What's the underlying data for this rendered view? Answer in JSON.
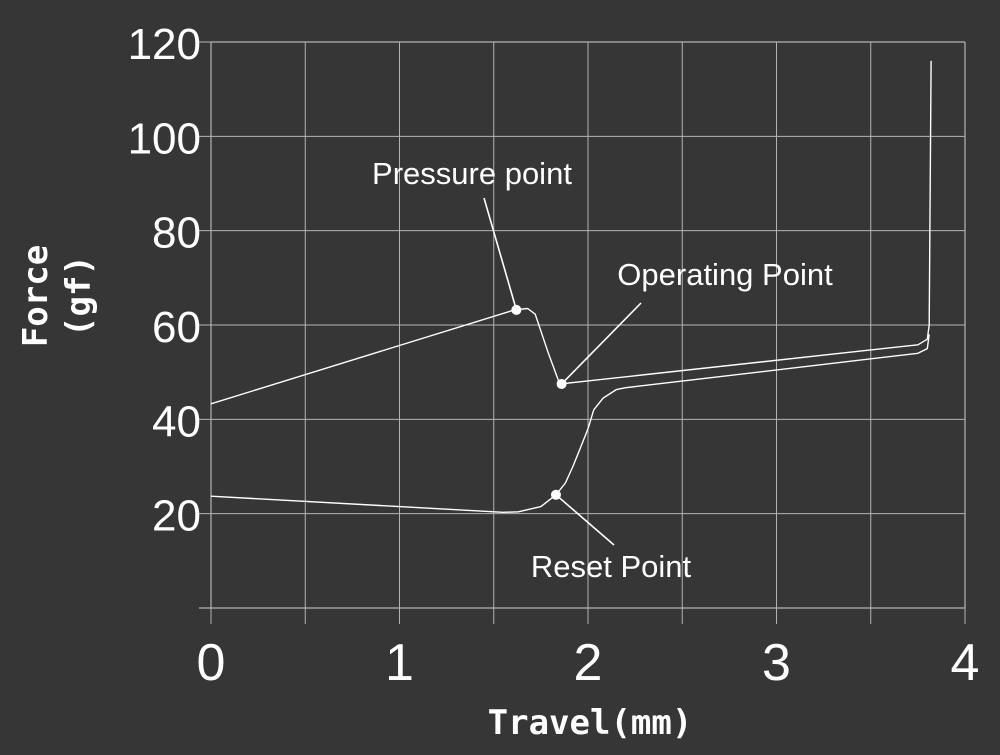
{
  "chart_data": {
    "type": "line",
    "xlabel": "Travel(mm)",
    "ylabel": "Force",
    "ylabel_unit": "(gf)",
    "xlim": [
      0,
      4
    ],
    "ylim": [
      0,
      120
    ],
    "x_ticks": [
      0,
      1,
      2,
      3,
      4
    ],
    "x_tick_labels": [
      "0",
      "1",
      "2",
      "3",
      "4"
    ],
    "y_ticks": [
      20,
      40,
      60,
      80,
      100,
      120
    ],
    "y_tick_labels": [
      "20",
      "40",
      "60",
      "80",
      "100",
      "120"
    ],
    "x_grid_minor": [
      0.5,
      1.5,
      2.5,
      3.5
    ],
    "grid": true,
    "colors": {
      "background": "#363636",
      "line": "#ffffff",
      "grid": "#b4b4b4"
    },
    "series": [
      {
        "values_xy": [
          [
            0,
            43.3
          ],
          [
            1.61,
            63.2
          ],
          [
            1.68,
            63.5
          ],
          [
            1.72,
            62.3
          ],
          [
            1.79,
            54
          ],
          [
            1.85,
            47.5
          ],
          [
            3.75,
            55.8
          ],
          [
            3.8,
            57
          ],
          [
            3.81,
            60
          ],
          [
            3.82,
            116
          ]
        ]
      },
      {
        "values_xy": [
          [
            3.81,
            58
          ],
          [
            3.8,
            55
          ],
          [
            3.75,
            54
          ],
          [
            2.2,
            46.7
          ],
          [
            2.15,
            46.3
          ],
          [
            2.08,
            44.5
          ],
          [
            2.03,
            42
          ],
          [
            2.0,
            38
          ],
          [
            1.96,
            34
          ],
          [
            1.92,
            30
          ],
          [
            1.88,
            26.5
          ],
          [
            1.83,
            24
          ],
          [
            1.75,
            21.5
          ],
          [
            1.63,
            20.4
          ],
          [
            1.55,
            20.3
          ],
          [
            0,
            23.7
          ]
        ]
      }
    ],
    "annotations": [
      {
        "text": "Pressure point",
        "point": [
          1.62,
          63.2
        ],
        "marker": true
      },
      {
        "text": "Operating Point",
        "point": [
          1.86,
          47.5
        ],
        "marker": true
      },
      {
        "text": "Reset Point",
        "point": [
          1.83,
          24
        ],
        "marker": true
      }
    ]
  }
}
